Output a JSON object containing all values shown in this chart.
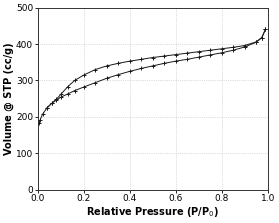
{
  "title": "",
  "xlabel": "Relative Pressure (P/P$_0$)",
  "ylabel": "Volume @ STP (cc/g)",
  "xlim": [
    0.0,
    1.0
  ],
  "ylim": [
    0,
    500
  ],
  "xticks": [
    0.0,
    0.2,
    0.4,
    0.6,
    0.8,
    1.0
  ],
  "yticks": [
    0,
    100,
    200,
    300,
    400,
    500
  ],
  "background_color": "#ffffff",
  "grid_color": "#bbbbbb",
  "line_color": "#1a1a1a",
  "adsorption_x": [
    0.005,
    0.01,
    0.02,
    0.04,
    0.06,
    0.08,
    0.1,
    0.13,
    0.16,
    0.2,
    0.25,
    0.3,
    0.35,
    0.4,
    0.45,
    0.5,
    0.55,
    0.6,
    0.65,
    0.7,
    0.75,
    0.8,
    0.85,
    0.9,
    0.95,
    0.975,
    0.99
  ],
  "adsorption_y": [
    183,
    192,
    207,
    225,
    237,
    246,
    254,
    263,
    272,
    282,
    294,
    306,
    316,
    325,
    333,
    340,
    347,
    353,
    358,
    364,
    370,
    376,
    383,
    392,
    405,
    418,
    440
  ],
  "desorption_x": [
    0.99,
    0.975,
    0.95,
    0.9,
    0.85,
    0.8,
    0.75,
    0.7,
    0.65,
    0.6,
    0.55,
    0.5,
    0.45,
    0.4,
    0.35,
    0.3,
    0.25,
    0.2,
    0.16,
    0.13,
    0.1,
    0.08,
    0.06,
    0.04
  ],
  "desorption_y": [
    440,
    418,
    406,
    396,
    391,
    387,
    383,
    379,
    375,
    371,
    367,
    363,
    358,
    353,
    347,
    340,
    330,
    315,
    300,
    283,
    262,
    248,
    237,
    225
  ],
  "marker_size": 2.5,
  "line_width": 0.7
}
